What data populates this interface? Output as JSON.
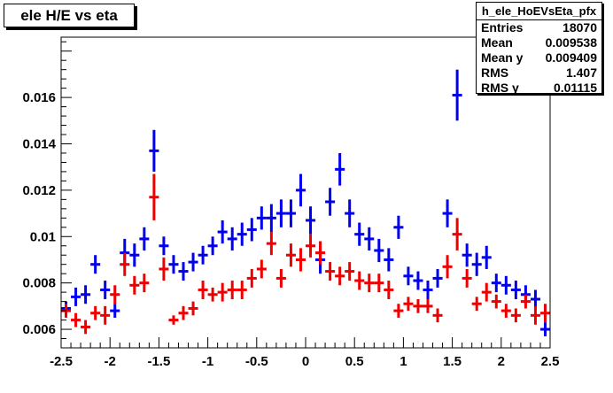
{
  "title": "ele H/E vs eta",
  "stats": {
    "name": "h_ele_HoEVsEta_pfx",
    "rows": [
      {
        "label": "Entries",
        "value": "18070"
      },
      {
        "label": "Mean",
        "value": "0.009538"
      },
      {
        "label": "Mean y",
        "value": "0.009409"
      },
      {
        "label": "RMS",
        "value": "1.407"
      },
      {
        "label": "RMS y",
        "value": "0.01115"
      }
    ]
  },
  "chart_data": {
    "type": "scatter",
    "title": "ele H/E vs eta",
    "xlabel": "",
    "ylabel": "",
    "xlim": [
      -2.5,
      2.5
    ],
    "ylim": [
      0.0052,
      0.0186
    ],
    "x_tick_labels": [
      "-2.5",
      "-2",
      "-1.5",
      "-1",
      "-0.5",
      "0",
      "0.5",
      "1",
      "1.5",
      "2",
      "2.5"
    ],
    "y_tick_labels": [
      "0.006",
      "0.008",
      "0.01",
      "0.012",
      "0.014",
      "0.016"
    ],
    "bin_half_width": 0.05,
    "series": [
      {
        "color": "#0000ee",
        "x": [
          -2.45,
          -2.35,
          -2.25,
          -2.15,
          -2.05,
          -1.95,
          -1.85,
          -1.75,
          -1.65,
          -1.55,
          -1.45,
          -1.35,
          -1.25,
          -1.15,
          -1.05,
          -0.95,
          -0.85,
          -0.75,
          -0.65,
          -0.55,
          -0.45,
          -0.35,
          -0.25,
          -0.15,
          -0.05,
          0.05,
          0.15,
          0.25,
          0.35,
          0.45,
          0.55,
          0.65,
          0.75,
          0.85,
          0.95,
          1.05,
          1.15,
          1.25,
          1.35,
          1.45,
          1.55,
          1.65,
          1.75,
          1.85,
          1.95,
          2.05,
          2.15,
          2.25,
          2.35,
          2.45
        ],
        "y": [
          0.0069,
          0.0074,
          0.0075,
          0.0088,
          0.0077,
          0.0068,
          0.0093,
          0.0092,
          0.0099,
          0.0137,
          0.0096,
          0.0088,
          0.0085,
          0.0089,
          0.0092,
          0.0096,
          0.0102,
          0.0099,
          0.0101,
          0.0103,
          0.0108,
          0.0108,
          0.011,
          0.011,
          0.012,
          0.0107,
          0.009,
          0.0115,
          0.0129,
          0.011,
          0.0101,
          0.0099,
          0.0094,
          0.009,
          0.0104,
          0.0083,
          0.0081,
          0.0077,
          0.0082,
          0.011,
          0.0161,
          0.0092,
          0.0088,
          0.0091,
          0.008,
          0.0079,
          0.0077,
          0.0075,
          0.0073,
          0.006
        ],
        "err": [
          0.0003,
          0.0004,
          0.0004,
          0.0004,
          0.0004,
          0.0003,
          0.0006,
          0.0005,
          0.0005,
          0.0009,
          0.0004,
          0.0004,
          0.0004,
          0.0004,
          0.0004,
          0.0004,
          0.0005,
          0.0005,
          0.0005,
          0.0005,
          0.0005,
          0.0006,
          0.0006,
          0.0006,
          0.0007,
          0.0006,
          0.0006,
          0.0006,
          0.0007,
          0.0006,
          0.0005,
          0.0005,
          0.0005,
          0.0005,
          0.0005,
          0.0004,
          0.0004,
          0.0004,
          0.0004,
          0.0006,
          0.0011,
          0.0005,
          0.0005,
          0.0005,
          0.0004,
          0.0004,
          0.0004,
          0.0004,
          0.0004,
          0.0003
        ]
      },
      {
        "color": "#ee0000",
        "x": [
          -2.45,
          -2.35,
          -2.25,
          -2.15,
          -2.05,
          -1.95,
          -1.85,
          -1.75,
          -1.65,
          -1.55,
          -1.45,
          -1.35,
          -1.25,
          -1.15,
          -1.05,
          -0.95,
          -0.85,
          -0.75,
          -0.65,
          -0.55,
          -0.45,
          -0.35,
          -0.25,
          -0.15,
          -0.05,
          0.05,
          0.15,
          0.25,
          0.35,
          0.45,
          0.55,
          0.65,
          0.75,
          0.85,
          0.95,
          1.05,
          1.15,
          1.25,
          1.35,
          1.45,
          1.55,
          1.65,
          1.75,
          1.85,
          1.95,
          2.05,
          2.15,
          2.25,
          2.35,
          2.45
        ],
        "y": [
          0.0068,
          0.0064,
          0.0061,
          0.0067,
          0.0066,
          0.0075,
          0.0088,
          0.0079,
          0.008,
          0.0117,
          0.0086,
          0.0064,
          0.0067,
          0.0069,
          0.0077,
          0.0075,
          0.0076,
          0.0077,
          0.0077,
          0.0082,
          0.0086,
          0.0097,
          0.0082,
          0.0092,
          0.009,
          0.0096,
          0.0093,
          0.0085,
          0.0083,
          0.0085,
          0.0081,
          0.008,
          0.008,
          0.0077,
          0.0068,
          0.0071,
          0.007,
          0.007,
          0.0066,
          0.0087,
          0.0101,
          0.0082,
          0.0071,
          0.0076,
          0.0072,
          0.0068,
          0.0066,
          0.0072,
          0.0066,
          0.0067
        ],
        "err": [
          0.0003,
          0.0003,
          0.0003,
          0.0003,
          0.0004,
          0.0004,
          0.0005,
          0.0004,
          0.0004,
          0.001,
          0.0005,
          0.0002,
          0.0003,
          0.0003,
          0.0004,
          0.0003,
          0.0004,
          0.0004,
          0.0004,
          0.0004,
          0.0004,
          0.0005,
          0.0004,
          0.0005,
          0.0005,
          0.0005,
          0.0005,
          0.0004,
          0.0004,
          0.0004,
          0.0004,
          0.0004,
          0.0004,
          0.0004,
          0.0003,
          0.0003,
          0.0003,
          0.0003,
          0.0003,
          0.0005,
          0.0007,
          0.0004,
          0.0003,
          0.0004,
          0.0003,
          0.0003,
          0.0003,
          0.0003,
          0.0004,
          0.0004
        ]
      }
    ]
  }
}
